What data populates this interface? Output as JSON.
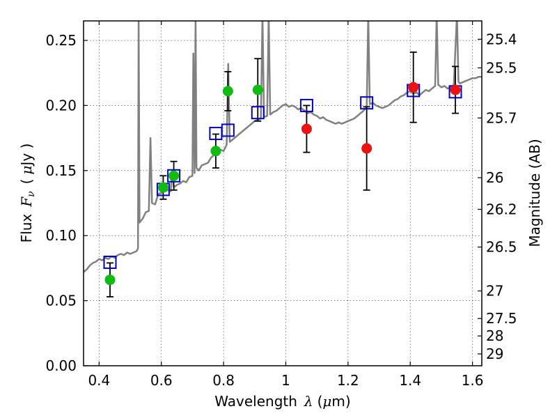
{
  "chart_data": {
    "type": "scatter",
    "xlabel_text": "Wavelength",
    "xlabel_symbol": "λ",
    "xlabel_unit_open": "(",
    "xlabel_unit_mu": "μ",
    "xlabel_unit_rest": "m)",
    "ylabel_text": "Flux",
    "ylabel_symbol": "F",
    "ylabel_sub": "ν",
    "ylabel_unit_open": "(",
    "ylabel_unit_mu": "μ",
    "ylabel_unit_rest": "Jy )",
    "y2label": "Magnitude (AB)",
    "xlim": [
      0.35,
      1.63
    ],
    "ylim": [
      0.0,
      0.265
    ],
    "xticks": [
      0.4,
      0.6,
      0.8,
      1.0,
      1.2,
      1.4,
      1.6
    ],
    "xtick_labels": [
      "0.4",
      "0.6",
      "0.8",
      "1",
      "1.2",
      "1.4",
      "1.6"
    ],
    "yticks": [
      0.0,
      0.05,
      0.1,
      0.15,
      0.2,
      0.25
    ],
    "ytick_labels": [
      "0.00",
      "0.05",
      "0.10",
      "0.15",
      "0.20",
      "0.25"
    ],
    "y2ticks": [
      {
        "mag": "25.4",
        "flux": 0.2509
      },
      {
        "mag": "25.5",
        "flux": 0.2289
      },
      {
        "mag": "25.7",
        "flux": 0.1904
      },
      {
        "mag": "26",
        "flux": 0.1445
      },
      {
        "mag": "26.2",
        "flux": 0.1202
      },
      {
        "mag": "26.5",
        "flux": 0.0912
      },
      {
        "mag": "27",
        "flux": 0.0575
      },
      {
        "mag": "27.5",
        "flux": 0.0363
      },
      {
        "mag": "28",
        "flux": 0.0229
      },
      {
        "mag": "29",
        "flux": 0.0091
      }
    ],
    "grid": true,
    "colors": {
      "template": "#808080",
      "green": "#11bb11",
      "red": "#ee1111",
      "model_box": "#0000cc",
      "errorbar": "#000000"
    },
    "template_spectrum": [
      [
        0.35,
        0.072
      ],
      [
        0.36,
        0.074
      ],
      [
        0.37,
        0.077
      ],
      [
        0.38,
        0.079
      ],
      [
        0.39,
        0.08
      ],
      [
        0.4,
        0.082
      ],
      [
        0.41,
        0.081
      ],
      [
        0.42,
        0.083
      ],
      [
        0.43,
        0.082
      ],
      [
        0.44,
        0.084
      ],
      [
        0.45,
        0.083
      ],
      [
        0.46,
        0.085
      ],
      [
        0.47,
        0.086
      ],
      [
        0.48,
        0.085
      ],
      [
        0.49,
        0.087
      ],
      [
        0.5,
        0.086
      ],
      [
        0.51,
        0.087
      ],
      [
        0.52,
        0.088
      ],
      [
        0.525,
        0.09
      ],
      [
        0.527,
        0.27
      ],
      [
        0.53,
        0.11
      ],
      [
        0.54,
        0.113
      ],
      [
        0.55,
        0.118
      ],
      [
        0.56,
        0.119
      ],
      [
        0.565,
        0.175
      ],
      [
        0.57,
        0.125
      ],
      [
        0.58,
        0.124
      ],
      [
        0.59,
        0.132
      ],
      [
        0.6,
        0.133
      ],
      [
        0.61,
        0.134
      ],
      [
        0.62,
        0.135
      ],
      [
        0.63,
        0.134
      ],
      [
        0.635,
        0.15
      ],
      [
        0.64,
        0.137
      ],
      [
        0.65,
        0.139
      ],
      [
        0.66,
        0.14
      ],
      [
        0.67,
        0.142
      ],
      [
        0.68,
        0.141
      ],
      [
        0.69,
        0.145
      ],
      [
        0.7,
        0.146
      ],
      [
        0.703,
        0.24
      ],
      [
        0.707,
        0.148
      ],
      [
        0.71,
        0.27
      ],
      [
        0.713,
        0.152
      ],
      [
        0.72,
        0.15
      ],
      [
        0.73,
        0.154
      ],
      [
        0.74,
        0.155
      ],
      [
        0.75,
        0.156
      ],
      [
        0.76,
        0.16
      ],
      [
        0.77,
        0.162
      ],
      [
        0.78,
        0.164
      ],
      [
        0.79,
        0.166
      ],
      [
        0.8,
        0.165
      ],
      [
        0.81,
        0.17
      ],
      [
        0.815,
        0.232
      ],
      [
        0.82,
        0.172
      ],
      [
        0.83,
        0.174
      ],
      [
        0.84,
        0.176
      ],
      [
        0.85,
        0.178
      ],
      [
        0.86,
        0.18
      ],
      [
        0.87,
        0.182
      ],
      [
        0.88,
        0.184
      ],
      [
        0.89,
        0.186
      ],
      [
        0.9,
        0.188
      ],
      [
        0.91,
        0.189
      ],
      [
        0.92,
        0.19
      ],
      [
        0.925,
        0.27
      ],
      [
        0.93,
        0.191
      ],
      [
        0.94,
        0.192
      ],
      [
        0.945,
        0.27
      ],
      [
        0.95,
        0.193
      ],
      [
        0.96,
        0.195
      ],
      [
        0.97,
        0.196
      ],
      [
        0.98,
        0.198
      ],
      [
        0.99,
        0.2
      ],
      [
        1.0,
        0.201
      ],
      [
        1.01,
        0.199
      ],
      [
        1.02,
        0.2
      ],
      [
        1.03,
        0.199
      ],
      [
        1.04,
        0.197
      ],
      [
        1.05,
        0.198
      ],
      [
        1.06,
        0.196
      ],
      [
        1.07,
        0.194
      ],
      [
        1.08,
        0.195
      ],
      [
        1.09,
        0.193
      ],
      [
        1.1,
        0.192
      ],
      [
        1.11,
        0.19
      ],
      [
        1.12,
        0.191
      ],
      [
        1.13,
        0.189
      ],
      [
        1.14,
        0.188
      ],
      [
        1.15,
        0.187
      ],
      [
        1.16,
        0.186
      ],
      [
        1.17,
        0.187
      ],
      [
        1.18,
        0.186
      ],
      [
        1.19,
        0.187
      ],
      [
        1.2,
        0.188
      ],
      [
        1.21,
        0.189
      ],
      [
        1.22,
        0.19
      ],
      [
        1.23,
        0.192
      ],
      [
        1.24,
        0.194
      ],
      [
        1.25,
        0.196
      ],
      [
        1.26,
        0.199
      ],
      [
        1.265,
        0.27
      ],
      [
        1.27,
        0.201
      ],
      [
        1.28,
        0.202
      ],
      [
        1.29,
        0.2
      ],
      [
        1.3,
        0.199
      ],
      [
        1.31,
        0.198
      ],
      [
        1.32,
        0.199
      ],
      [
        1.33,
        0.2
      ],
      [
        1.34,
        0.202
      ],
      [
        1.35,
        0.204
      ],
      [
        1.36,
        0.205
      ],
      [
        1.37,
        0.207
      ],
      [
        1.38,
        0.208
      ],
      [
        1.39,
        0.21
      ],
      [
        1.4,
        0.211
      ],
      [
        1.41,
        0.209
      ],
      [
        1.42,
        0.21
      ],
      [
        1.43,
        0.208
      ],
      [
        1.44,
        0.21
      ],
      [
        1.45,
        0.212
      ],
      [
        1.46,
        0.211
      ],
      [
        1.47,
        0.213
      ],
      [
        1.48,
        0.215
      ],
      [
        1.485,
        0.27
      ],
      [
        1.49,
        0.216
      ],
      [
        1.5,
        0.214
      ],
      [
        1.51,
        0.215
      ],
      [
        1.52,
        0.213
      ],
      [
        1.53,
        0.214
      ],
      [
        1.54,
        0.216
      ],
      [
        1.55,
        0.27
      ],
      [
        1.555,
        0.218
      ],
      [
        1.56,
        0.217
      ],
      [
        1.57,
        0.218
      ],
      [
        1.58,
        0.219
      ],
      [
        1.59,
        0.22
      ],
      [
        1.6,
        0.221
      ],
      [
        1.61,
        0.221
      ],
      [
        1.62,
        0.222
      ],
      [
        1.63,
        0.222
      ]
    ],
    "observed": [
      {
        "x": 0.435,
        "y": 0.066,
        "err": 0.013,
        "color": "green"
      },
      {
        "x": 0.606,
        "y": 0.137,
        "err": 0.009,
        "color": "green"
      },
      {
        "x": 0.64,
        "y": 0.146,
        "err": 0.011,
        "color": "green"
      },
      {
        "x": 0.775,
        "y": 0.165,
        "err": 0.013,
        "color": "green"
      },
      {
        "x": 0.814,
        "y": 0.211,
        "err": 0.015,
        "color": "green"
      },
      {
        "x": 0.91,
        "y": 0.212,
        "err": 0.024,
        "color": "green"
      },
      {
        "x": 1.067,
        "y": 0.182,
        "err": 0.018,
        "color": "red"
      },
      {
        "x": 1.26,
        "y": 0.167,
        "err": 0.032,
        "color": "red"
      },
      {
        "x": 1.41,
        "y": 0.214,
        "err": 0.027,
        "color": "red"
      },
      {
        "x": 1.545,
        "y": 0.212,
        "err": 0.018,
        "color": "red"
      }
    ],
    "model": [
      {
        "x": 0.435,
        "y": 0.0795
      },
      {
        "x": 0.606,
        "y": 0.1355
      },
      {
        "x": 0.64,
        "y": 0.146
      },
      {
        "x": 0.775,
        "y": 0.1785
      },
      {
        "x": 0.814,
        "y": 0.181
      },
      {
        "x": 0.91,
        "y": 0.1945
      },
      {
        "x": 1.067,
        "y": 0.2
      },
      {
        "x": 1.26,
        "y": 0.202
      },
      {
        "x": 1.41,
        "y": 0.2115
      },
      {
        "x": 1.545,
        "y": 0.2105
      }
    ]
  }
}
